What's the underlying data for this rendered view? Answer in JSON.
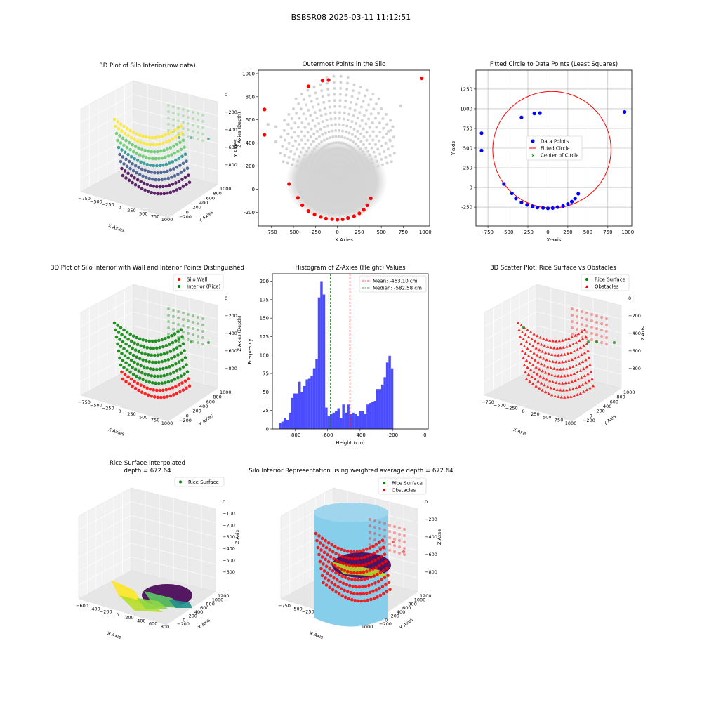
{
  "figure": {
    "suptitle": "BSBSR08 2025-03-11 11:12:51"
  },
  "colors": {
    "wall": "#ff0000",
    "interior": "#008000",
    "data_points": "#0000ff",
    "outer_gray": "#d3d3d3",
    "hist": "#0000ff",
    "mean_line": "#ff0000",
    "median_line": "#008000",
    "cylinder": "#87ceeb",
    "viridis": [
      "#440154",
      "#3b528b",
      "#21908d",
      "#5dc963",
      "#fde725"
    ]
  },
  "chart_data": [
    {
      "type": "scatter3d",
      "panel": "p1",
      "title": "3D Plot of Silo Interior(row data)",
      "xlabel": "X Axies",
      "ylabel": "Y Axies",
      "zlabel": "Z Axies (Depth)",
      "xticks": [
        "−750",
        "−500",
        "−250",
        "0",
        "250",
        "500",
        "750",
        "1000"
      ],
      "yticks": [
        "−200",
        "0",
        "200",
        "400",
        "600",
        "800",
        "1000"
      ],
      "zticks": [
        "0",
        "−200",
        "−400",
        "−600",
        "−800"
      ],
      "colormap": "viridis"
    },
    {
      "type": "scatter",
      "panel": "p2",
      "title": "Outermost Points in the Silo",
      "xlabel": "X Axies",
      "ylabel": "Y Axies",
      "xlim": [
        -900,
        1050
      ],
      "ylim": [
        -320,
        1030
      ],
      "xticks": [
        -750,
        -500,
        -250,
        0,
        250,
        500,
        750,
        1000
      ],
      "yticks": [
        -200,
        0,
        200,
        400,
        600,
        800,
        1000
      ],
      "outermost_points": [
        [
          -830,
          690
        ],
        [
          -830,
          470
        ],
        [
          -550,
          45
        ],
        [
          -450,
          -75
        ],
        [
          -400,
          -140
        ],
        [
          -330,
          -190
        ],
        [
          -260,
          -220
        ],
        [
          -190,
          -240
        ],
        [
          -130,
          -255
        ],
        [
          -60,
          -260
        ],
        [
          0,
          -265
        ],
        [
          60,
          -262
        ],
        [
          120,
          -250
        ],
        [
          190,
          -235
        ],
        [
          250,
          -210
        ],
        [
          300,
          -180
        ],
        [
          340,
          -140
        ],
        [
          380,
          -80
        ],
        [
          -330,
          890
        ],
        [
          -170,
          940
        ],
        [
          -100,
          945
        ],
        [
          960,
          960
        ]
      ],
      "extra_gray_points": [
        [
          720,
          720
        ],
        [
          630,
          540
        ],
        [
          580,
          500
        ],
        [
          600,
          420
        ],
        [
          -560,
          560
        ],
        [
          -700,
          540
        ],
        [
          -790,
          560
        ],
        [
          -700,
          410
        ]
      ]
    },
    {
      "type": "scatter",
      "panel": "p3",
      "title": "Fitted Circle to Data Points (Least Squares)",
      "xlabel": "X-axis",
      "ylabel": "Y-axis",
      "xlim": [
        -900,
        1050
      ],
      "ylim": [
        -490,
        1490
      ],
      "xticks": [
        -750,
        -500,
        -250,
        0,
        250,
        500,
        750,
        1000
      ],
      "yticks": [
        -250,
        0,
        250,
        500,
        750,
        1000,
        1250
      ],
      "grid": true,
      "legend": [
        "Data Points",
        "Fitted Circle",
        "Center of Circle"
      ],
      "legend_position": "center",
      "circle": {
        "cx": 50,
        "cy": 480,
        "r": 740
      },
      "points": [
        [
          -830,
          690
        ],
        [
          -830,
          470
        ],
        [
          -550,
          45
        ],
        [
          -450,
          -75
        ],
        [
          -400,
          -140
        ],
        [
          -330,
          -190
        ],
        [
          -260,
          -220
        ],
        [
          -190,
          -240
        ],
        [
          -130,
          -255
        ],
        [
          -60,
          -260
        ],
        [
          0,
          -265
        ],
        [
          60,
          -262
        ],
        [
          120,
          -250
        ],
        [
          190,
          -235
        ],
        [
          250,
          -210
        ],
        [
          300,
          -180
        ],
        [
          340,
          -140
        ],
        [
          380,
          -80
        ],
        [
          -330,
          890
        ],
        [
          -170,
          940
        ],
        [
          -100,
          945
        ],
        [
          960,
          960
        ]
      ]
    },
    {
      "type": "scatter3d",
      "panel": "p4",
      "title": "3D Plot of Silo Interior with Wall and Interior Points Distinguished",
      "xlabel": "X Axies",
      "ylabel": "Y Axies",
      "zlabel": "Z Axies (Depth)",
      "xticks": [
        "−750",
        "−500",
        "−250",
        "0",
        "250",
        "500",
        "750",
        "1000"
      ],
      "yticks": [
        "−200",
        "0",
        "200",
        "400",
        "600",
        "800",
        "1000"
      ],
      "zticks": [
        "0",
        "−200",
        "−400",
        "−600",
        "−800"
      ],
      "legend": [
        "Silo Wall",
        "Interior (Rice)"
      ],
      "legend_position": "top-right"
    },
    {
      "type": "bar",
      "panel": "p5",
      "title": "Histogram of Z-Axies (Height) Values",
      "xlabel": "Height (cm)",
      "ylabel": "Frequency",
      "xlim": [
        -940,
        20
      ],
      "ylim": [
        0,
        210
      ],
      "xticks": [
        -800,
        -600,
        -400,
        -200,
        0
      ],
      "yticks": [
        0,
        25,
        50,
        75,
        100,
        125,
        150,
        175,
        200
      ],
      "bin_start": -900,
      "bin_width": 15,
      "values": [
        8,
        10,
        15,
        12,
        22,
        42,
        48,
        48,
        64,
        50,
        58,
        67,
        68,
        72,
        82,
        95,
        178,
        200,
        182,
        29,
        18,
        20,
        22,
        24,
        28,
        15,
        33,
        22,
        33,
        20,
        22,
        20,
        18,
        24,
        24,
        20,
        33,
        35,
        37,
        38,
        54,
        54,
        60,
        70,
        90,
        99,
        82
      ],
      "legend": [
        "Mean: -463.10 cm",
        "Median: -582.58 cm"
      ],
      "legend_position": "top-right",
      "mean": -463.1,
      "median": -582.58
    },
    {
      "type": "scatter3d",
      "panel": "p6",
      "title": "3D Scatter Plot: Rice Surface vs Obstacles",
      "xlabel": "X Axis",
      "ylabel": "Y Axis",
      "zlabel": "Z Axis",
      "xticks": [
        "−750",
        "−500",
        "−250",
        "0",
        "250",
        "500",
        "750",
        "1000"
      ],
      "yticks": [
        "−200",
        "0",
        "200",
        "400",
        "600",
        "800",
        "1000"
      ],
      "zticks": [
        "0",
        "−200",
        "−400",
        "−600",
        "−800"
      ],
      "legend": [
        "Rice Surface",
        "Obstacles"
      ],
      "legend_position": "top-right"
    },
    {
      "type": "surface3d",
      "panel": "p7",
      "title": "Rice Surface Interpolated",
      "subtitle": "depth = 672.64",
      "xlabel": "X Axis",
      "ylabel": "Y Axis",
      "zlabel": "Z Axis",
      "xticks": [
        "−600",
        "−400",
        "−200",
        "0",
        "200",
        "400",
        "600",
        "800"
      ],
      "yticks": [
        "−200",
        "0",
        "200",
        "400",
        "600",
        "800",
        "1000",
        "1200"
      ],
      "zticks": [
        "0",
        "−100",
        "−200",
        "−300",
        "−400",
        "−500",
        "−600"
      ],
      "legend": [
        "Rice Surface"
      ],
      "legend_position": "top-right"
    },
    {
      "type": "scatter3d",
      "panel": "p8",
      "title": "Silo Interior Representation using weighted average depth = 672.64",
      "xlabel": "X Axis",
      "ylabel": "Y Axes",
      "zlabel": "Z Axes",
      "xticks": [
        "−750",
        "−500",
        "−250",
        "0",
        "250",
        "500",
        "750",
        "1000"
      ],
      "yticks": [
        "−200",
        "0",
        "200",
        "400",
        "600",
        "800",
        "1000",
        "1200"
      ],
      "zticks": [
        "0",
        "−200",
        "−400",
        "−600",
        "−800"
      ],
      "legend": [
        "Rice Surface",
        "Obstacles"
      ],
      "legend_position": "top-center"
    }
  ]
}
